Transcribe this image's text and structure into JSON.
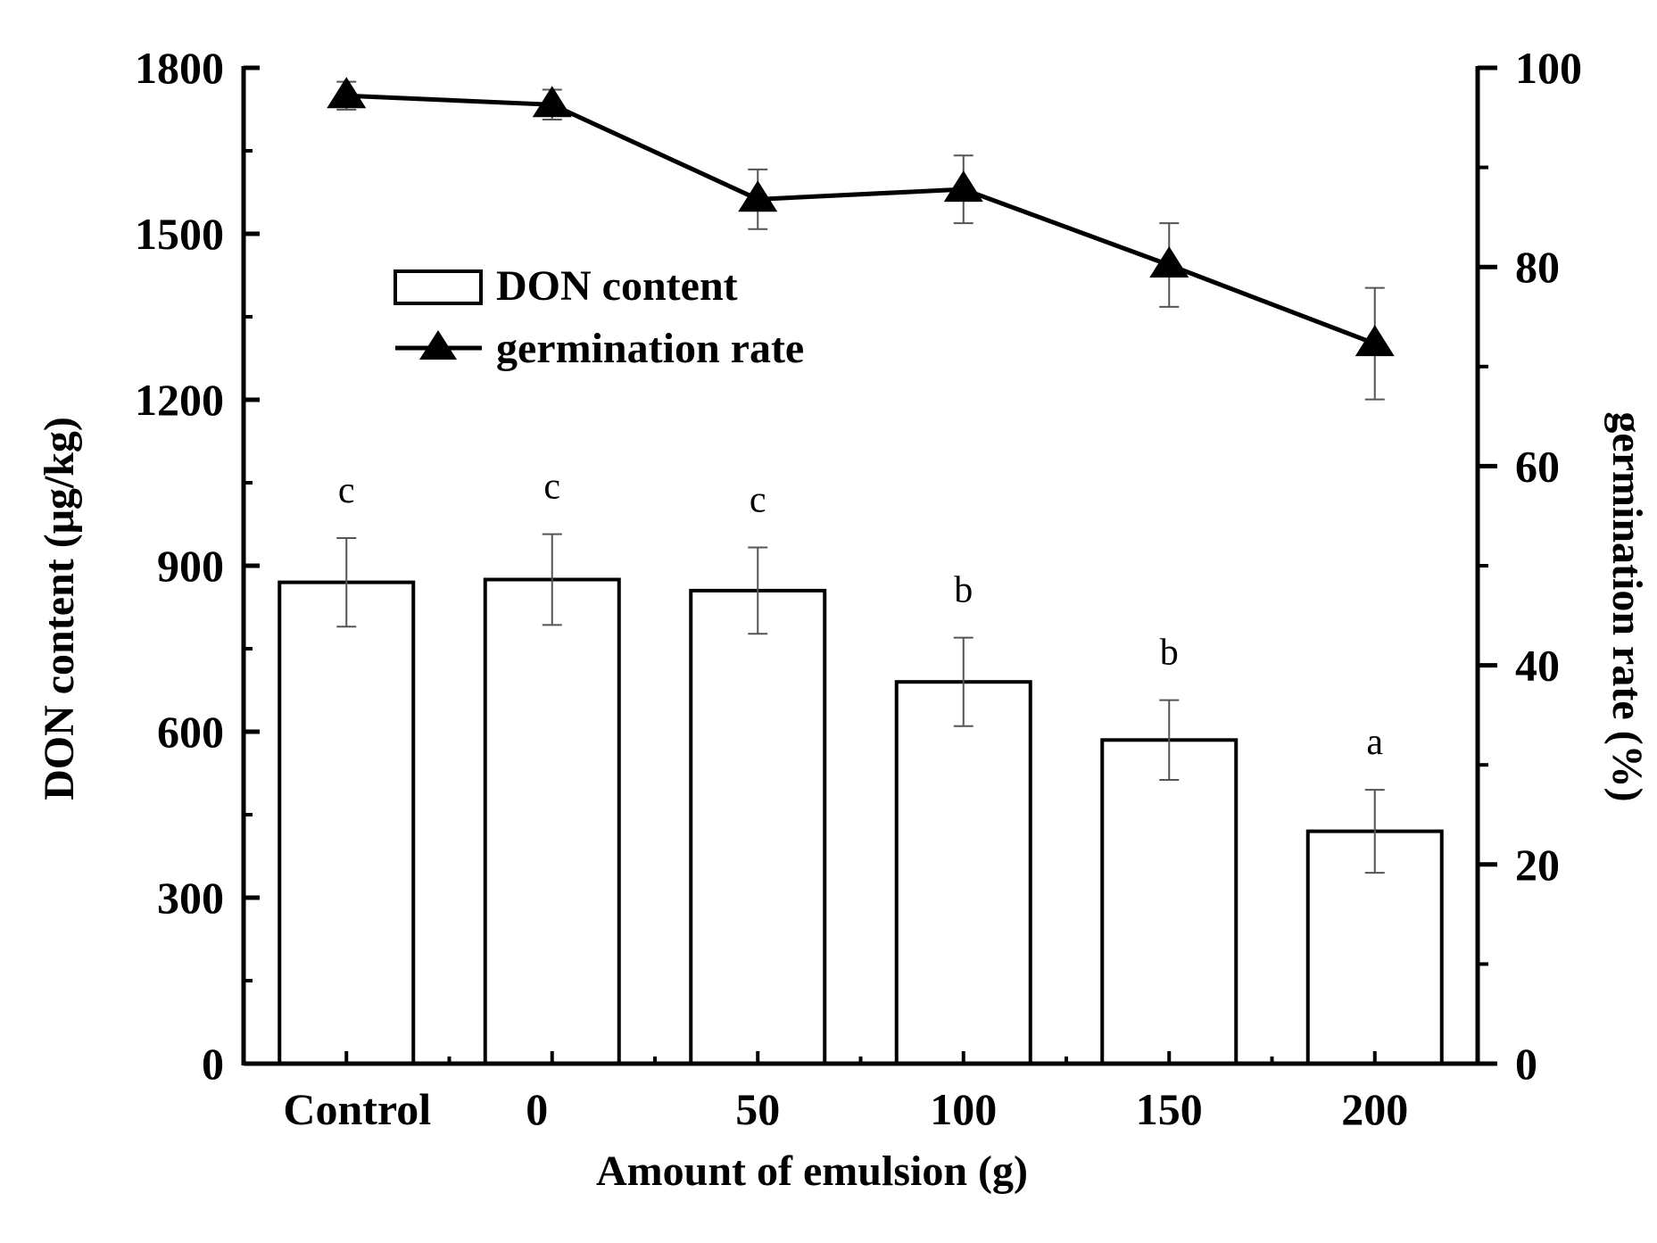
{
  "chart_data": {
    "type": "bar+line",
    "title": "",
    "xlabel": "Amount of emulsion  (g)",
    "categories": [
      "Control",
      "0",
      "50",
      "100",
      "150",
      "200"
    ],
    "y_left": {
      "label": "DON content (μg/kg)",
      "lim": [
        0,
        1800
      ],
      "ticks": [
        0,
        300,
        600,
        900,
        1200,
        1500,
        1800
      ]
    },
    "y_right": {
      "label": "germination rate (%)",
      "lim": [
        0,
        100
      ],
      "ticks": [
        0,
        20,
        40,
        60,
        80,
        100
      ]
    },
    "series": [
      {
        "name": "DON content",
        "kind": "bar",
        "axis": "left",
        "values": [
          870,
          875,
          855,
          690,
          585,
          420
        ],
        "errors": [
          80,
          82,
          78,
          80,
          72,
          75
        ],
        "significance": [
          "c",
          "c",
          "c",
          "b",
          "b",
          "a"
        ]
      },
      {
        "name": "germination rate",
        "kind": "line",
        "marker": "triangle",
        "axis": "right",
        "values": [
          97.2,
          96.3,
          86.8,
          87.8,
          80.2,
          72.3
        ],
        "errors": [
          1.4,
          1.5,
          3.0,
          3.4,
          4.2,
          5.6
        ]
      }
    ],
    "legend": {
      "position": "upper-left",
      "entries": [
        "DON content",
        "germination rate"
      ]
    }
  }
}
